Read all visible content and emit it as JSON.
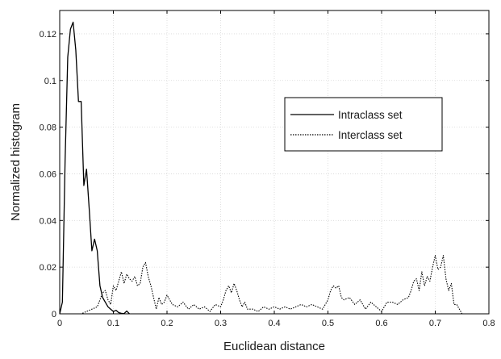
{
  "chart_data": {
    "type": "line",
    "title": "",
    "xlabel": "Euclidean distance",
    "ylabel": "Normalized histogram",
    "xlim": [
      0,
      0.8
    ],
    "ylim": [
      0,
      0.13
    ],
    "x_ticks": [
      0,
      0.1,
      0.2,
      0.3,
      0.4,
      0.5,
      0.6,
      0.7,
      0.8
    ],
    "x_tick_labels": [
      "0",
      "0.1",
      "0.2",
      "0.3",
      "0.4",
      "0.5",
      "0.6",
      "0.7",
      "0.8"
    ],
    "y_ticks": [
      0,
      0.02,
      0.04,
      0.06,
      0.08,
      0.1,
      0.12
    ],
    "y_tick_labels": [
      "0",
      "0.02",
      "0.04",
      "0.06",
      "0.08",
      "0.1",
      "0.12"
    ],
    "grid": true,
    "legend_position": "right-center",
    "series": [
      {
        "name": "Intraclass set",
        "style": "solid",
        "color": "#000000",
        "x": [
          0,
          0.005,
          0.01,
          0.015,
          0.02,
          0.025,
          0.03,
          0.035,
          0.04,
          0.045,
          0.05,
          0.055,
          0.06,
          0.065,
          0.07,
          0.075,
          0.08,
          0.085,
          0.09,
          0.095,
          0.1,
          0.105,
          0.11,
          0.115,
          0.12,
          0.125,
          0.13
        ],
        "y": [
          0,
          0.005,
          0.065,
          0.11,
          0.122,
          0.125,
          0.113,
          0.091,
          0.091,
          0.055,
          0.062,
          0.045,
          0.027,
          0.032,
          0.027,
          0.012,
          0.007,
          0.005,
          0.003,
          0.002,
          0.001,
          0.0015,
          0.0005,
          0.0002,
          0.0001,
          0.0012,
          0
        ]
      },
      {
        "name": "Interclass set",
        "style": "dotted",
        "color": "#000000",
        "x": [
          0.02,
          0.04,
          0.05,
          0.06,
          0.07,
          0.075,
          0.08,
          0.085,
          0.09,
          0.095,
          0.1,
          0.105,
          0.11,
          0.115,
          0.12,
          0.125,
          0.13,
          0.135,
          0.14,
          0.145,
          0.15,
          0.155,
          0.16,
          0.165,
          0.17,
          0.175,
          0.18,
          0.185,
          0.19,
          0.195,
          0.2,
          0.21,
          0.22,
          0.23,
          0.24,
          0.25,
          0.26,
          0.27,
          0.28,
          0.29,
          0.3,
          0.305,
          0.31,
          0.315,
          0.32,
          0.325,
          0.33,
          0.335,
          0.34,
          0.345,
          0.35,
          0.36,
          0.37,
          0.38,
          0.39,
          0.4,
          0.41,
          0.42,
          0.43,
          0.44,
          0.45,
          0.46,
          0.47,
          0.48,
          0.49,
          0.5,
          0.505,
          0.51,
          0.515,
          0.52,
          0.525,
          0.53,
          0.54,
          0.55,
          0.56,
          0.57,
          0.58,
          0.59,
          0.6,
          0.61,
          0.62,
          0.63,
          0.64,
          0.65,
          0.655,
          0.66,
          0.665,
          0.67,
          0.675,
          0.68,
          0.685,
          0.69,
          0.695,
          0.7,
          0.705,
          0.71,
          0.715,
          0.72,
          0.725,
          0.73,
          0.735,
          0.74,
          0.745,
          0.75
        ],
        "y": [
          0,
          0,
          0.001,
          0.002,
          0.003,
          0.006,
          0.009,
          0.01,
          0.006,
          0.004,
          0.012,
          0.01,
          0.014,
          0.018,
          0.013,
          0.017,
          0.015,
          0.014,
          0.016,
          0.012,
          0.013,
          0.02,
          0.022,
          0.016,
          0.012,
          0.007,
          0.002,
          0.007,
          0.004,
          0.005,
          0.008,
          0.004,
          0.003,
          0.005,
          0.002,
          0.004,
          0.002,
          0.003,
          0.001,
          0.004,
          0.003,
          0.006,
          0.01,
          0.012,
          0.009,
          0.013,
          0.01,
          0.006,
          0.003,
          0.005,
          0.002,
          0.002,
          0.001,
          0.003,
          0.002,
          0.003,
          0.002,
          0.003,
          0.002,
          0.003,
          0.004,
          0.003,
          0.004,
          0.003,
          0.002,
          0.006,
          0.01,
          0.012,
          0.011,
          0.012,
          0.007,
          0.006,
          0.007,
          0.004,
          0.006,
          0.002,
          0.005,
          0.003,
          0.001,
          0.005,
          0.005,
          0.004,
          0.006,
          0.007,
          0.01,
          0.014,
          0.015,
          0.01,
          0.018,
          0.012,
          0.016,
          0.014,
          0.02,
          0.025,
          0.019,
          0.02,
          0.025,
          0.015,
          0.01,
          0.013,
          0.004,
          0.004,
          0.002,
          0
        ]
      }
    ]
  }
}
